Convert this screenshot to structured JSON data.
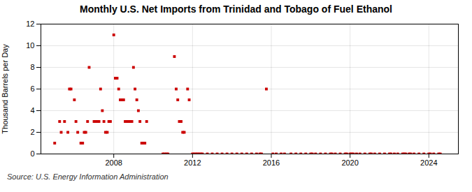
{
  "chart_data": {
    "type": "scatter",
    "title": "Monthly U.S. Net Imports from Trinidad and Tobago of Fuel Ethanol",
    "y_label": "Thousand Barrels per Day",
    "caption": "Source: U.S. Energy Information Administration",
    "color": "#cc0000",
    "marker": "square",
    "grid": true,
    "xlim": [
      2004.3,
      2025.5
    ],
    "xticks": [
      2008,
      2012,
      2016,
      2020,
      2024
    ],
    "ylim": [
      0,
      12
    ],
    "yticks": [
      0,
      2,
      4,
      6,
      8,
      10,
      12
    ],
    "x": [
      2005.0,
      2005.25,
      2005.33,
      2005.5,
      2005.67,
      2005.75,
      2005.83,
      2006.0,
      2006.08,
      2006.17,
      2006.33,
      2006.42,
      2006.5,
      2006.58,
      2006.67,
      2006.75,
      2007.0,
      2007.08,
      2007.17,
      2007.25,
      2007.33,
      2007.42,
      2007.5,
      2007.58,
      2007.67,
      2007.75,
      2007.83,
      2008.0,
      2008.08,
      2008.17,
      2008.25,
      2008.33,
      2008.42,
      2008.5,
      2008.58,
      2008.67,
      2008.75,
      2008.83,
      2008.92,
      2009.0,
      2009.08,
      2009.17,
      2009.25,
      2009.33,
      2009.42,
      2009.5,
      2009.58,
      2009.67,
      2010.5,
      2010.58,
      2010.67,
      2010.75,
      2011.08,
      2011.17,
      2011.25,
      2011.33,
      2011.42,
      2011.5,
      2011.58,
      2011.75,
      2011.83,
      2012.0,
      2012.08,
      2012.17,
      2012.25,
      2012.33,
      2012.42,
      2012.5,
      2012.75,
      2013.0,
      2013.25,
      2013.5,
      2013.75,
      2014.0,
      2014.25,
      2014.5,
      2014.75,
      2015.0,
      2015.25,
      2015.42,
      2015.5,
      2015.75,
      2016.08,
      2016.25,
      2016.5,
      2016.67,
      2017.0,
      2017.25,
      2017.5,
      2017.75,
      2018.0,
      2018.08,
      2018.25,
      2018.5,
      2018.75,
      2019.0,
      2019.08,
      2019.25,
      2019.5,
      2019.75,
      2019.83,
      2020.0,
      2020.08,
      2020.17,
      2020.33,
      2020.5,
      2020.75,
      2021.0,
      2021.08,
      2021.25,
      2021.5,
      2021.75,
      2022.0,
      2022.08,
      2022.25,
      2022.42,
      2022.67,
      2022.75,
      2022.83,
      2023.0,
      2023.08,
      2023.25,
      2023.5,
      2023.75,
      2024.0,
      2024.08,
      2024.25,
      2024.5,
      2024.58
    ],
    "values": [
      1,
      3,
      2,
      3,
      2,
      6,
      6,
      5,
      3,
      2,
      1,
      1,
      2,
      2,
      3,
      8,
      3,
      3,
      3,
      3,
      6,
      4,
      3,
      2,
      2,
      3,
      3,
      11,
      7,
      7,
      6,
      5,
      5,
      5,
      3,
      3,
      3,
      3,
      3,
      8,
      6,
      5,
      4,
      3,
      1,
      1,
      1,
      3,
      0,
      0,
      0,
      0,
      9,
      6,
      5,
      3,
      3,
      2,
      2,
      6,
      5,
      0,
      0,
      0,
      0,
      0,
      0,
      0,
      0,
      0,
      0,
      0,
      0,
      0,
      0,
      0,
      0,
      0,
      0,
      0,
      0,
      6,
      0,
      0,
      0,
      0,
      0,
      0,
      0,
      0,
      0,
      0,
      0,
      0,
      0,
      0,
      0,
      0,
      0,
      0,
      0,
      0,
      0,
      0,
      0,
      0,
      0,
      0,
      0,
      0,
      0,
      0,
      0,
      0,
      0,
      0,
      0,
      0,
      0,
      0,
      0,
      0,
      0,
      0,
      0,
      0,
      0,
      0,
      0
    ]
  }
}
